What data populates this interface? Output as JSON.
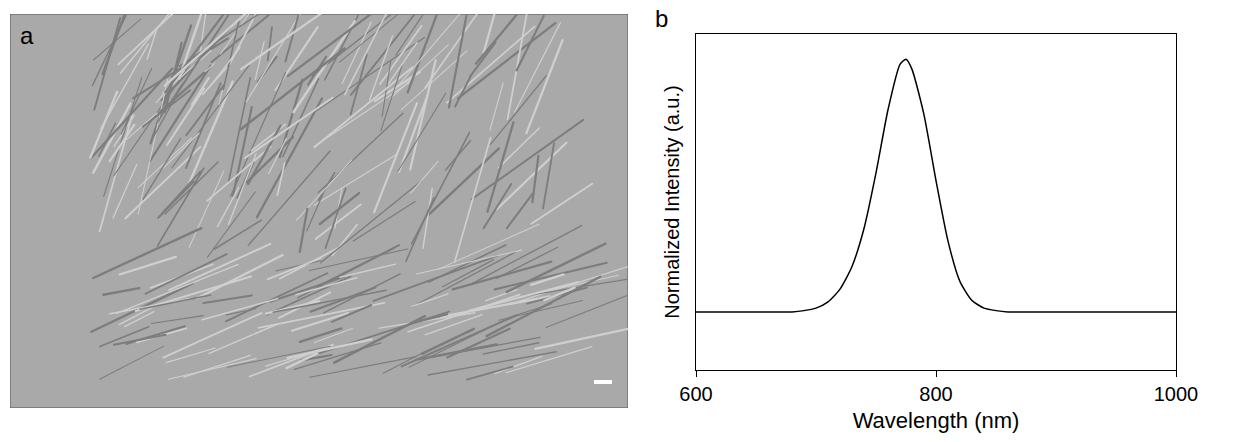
{
  "chart_data": [
    {
      "type": "image",
      "label": "a"
    },
    {
      "type": "line",
      "label": "b",
      "xlabel": "Wavelength (nm)",
      "ylabel": "Normalized Intensity (a.u.)",
      "x": [
        600,
        610,
        620,
        630,
        640,
        650,
        660,
        670,
        680,
        690,
        700,
        710,
        720,
        730,
        740,
        750,
        760,
        770,
        775,
        780,
        790,
        800,
        810,
        820,
        830,
        840,
        850,
        860,
        870,
        880,
        890,
        900,
        910,
        920,
        930,
        940,
        950,
        960,
        970,
        980,
        990,
        1000
      ],
      "values": [
        0,
        0,
        0,
        0,
        0,
        0,
        0,
        0,
        0,
        0.005,
        0.015,
        0.04,
        0.09,
        0.18,
        0.33,
        0.55,
        0.8,
        0.98,
        1.0,
        0.96,
        0.78,
        0.52,
        0.28,
        0.12,
        0.045,
        0.015,
        0.005,
        0,
        0,
        0,
        0,
        0,
        0,
        0,
        0,
        0,
        0,
        0,
        0,
        0,
        0,
        0
      ],
      "color": "#000000",
      "xlim": [
        600,
        1000
      ],
      "xticks": [
        600,
        800,
        1000
      ],
      "ylim": [
        -0.23,
        1.1
      ],
      "tick_labels": "x",
      "grid": false
    }
  ]
}
